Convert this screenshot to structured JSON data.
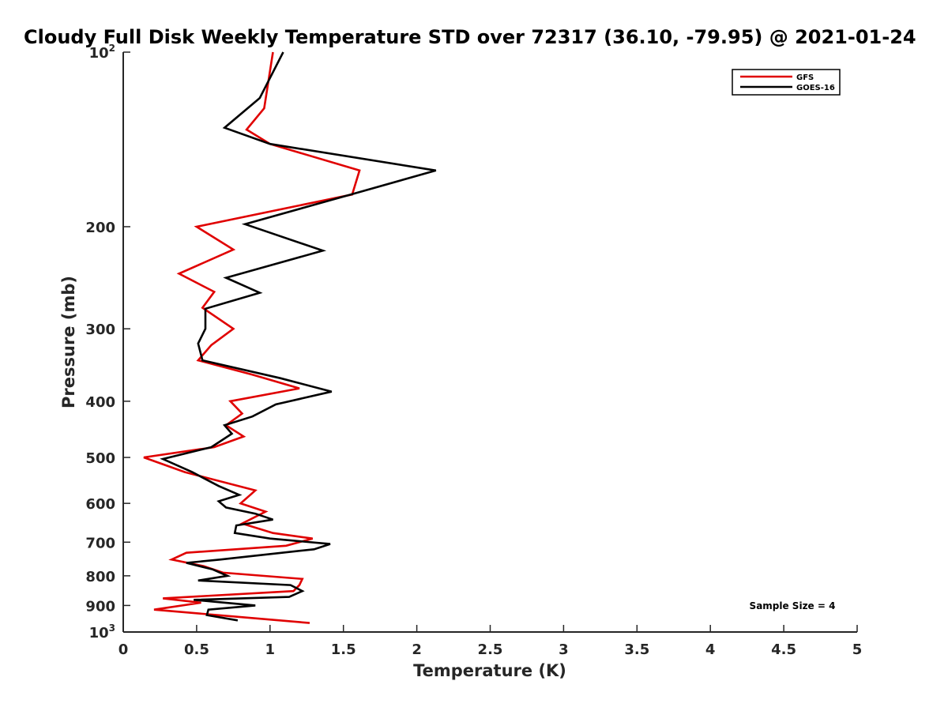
{
  "chart_data": {
    "type": "line",
    "title": "Cloudy Full Disk Weekly Temperature STD over 72317 (36.10, -79.95) @ 2021-01-24",
    "xlabel": "Temperature (K)",
    "ylabel": "Pressure (mb)",
    "xlim": [
      0,
      5
    ],
    "ylim": [
      1000,
      100
    ],
    "yscale": "log",
    "y_reversed": true,
    "grid": false,
    "legend_position": "top-right",
    "x_ticks": [
      "0",
      "0.5",
      "1",
      "1.5",
      "2",
      "2.5",
      "3",
      "3.5",
      "4",
      "4.5",
      "5"
    ],
    "y_ticks": [
      {
        "value": 100,
        "base": "10",
        "exp": "2"
      },
      {
        "value": 200,
        "label": "200"
      },
      {
        "value": 300,
        "label": "300"
      },
      {
        "value": 400,
        "label": "400"
      },
      {
        "value": 500,
        "label": "500"
      },
      {
        "value": 600,
        "label": "600"
      },
      {
        "value": 700,
        "label": "700"
      },
      {
        "value": 800,
        "label": "800"
      },
      {
        "value": 900,
        "label": "900"
      },
      {
        "value": 1000,
        "base": "10",
        "exp": "3"
      }
    ],
    "series": [
      {
        "name": "GFS",
        "color": "#e00000",
        "points": [
          [
            1.02,
            100
          ],
          [
            0.96,
            125
          ],
          [
            0.84,
            136
          ],
          [
            1.0,
            144
          ],
          [
            1.61,
            160
          ],
          [
            1.56,
            176
          ],
          [
            0.5,
            200
          ],
          [
            0.75,
            219
          ],
          [
            0.38,
            241
          ],
          [
            0.62,
            259
          ],
          [
            0.54,
            276
          ],
          [
            0.75,
            300
          ],
          [
            0.6,
            320
          ],
          [
            0.51,
            340
          ],
          [
            0.88,
            360
          ],
          [
            1.2,
            380
          ],
          [
            0.73,
            400
          ],
          [
            0.81,
            420
          ],
          [
            0.7,
            440
          ],
          [
            0.82,
            460
          ],
          [
            0.62,
            480
          ],
          [
            0.14,
            500
          ],
          [
            0.42,
            530
          ],
          [
            0.9,
            570
          ],
          [
            0.8,
            600
          ],
          [
            0.97,
            620
          ],
          [
            0.81,
            650
          ],
          [
            1.02,
            675
          ],
          [
            1.29,
            690
          ],
          [
            1.11,
            710
          ],
          [
            0.43,
            730
          ],
          [
            0.33,
            750
          ],
          [
            0.55,
            770
          ],
          [
            0.68,
            790
          ],
          [
            1.22,
            810
          ],
          [
            1.2,
            830
          ],
          [
            1.16,
            850
          ],
          [
            0.27,
            875
          ],
          [
            0.53,
            890
          ],
          [
            0.21,
            915
          ],
          [
            0.75,
            940
          ],
          [
            1.27,
            965
          ]
        ]
      },
      {
        "name": "GOES-16",
        "color": "#000000",
        "points": [
          [
            1.09,
            100
          ],
          [
            0.93,
            120
          ],
          [
            0.69,
            135
          ],
          [
            1.0,
            144
          ],
          [
            2.13,
            160
          ],
          [
            1.55,
            176
          ],
          [
            0.83,
            198
          ],
          [
            1.36,
            220
          ],
          [
            0.7,
            245
          ],
          [
            0.93,
            260
          ],
          [
            0.56,
            277
          ],
          [
            0.56,
            300
          ],
          [
            0.51,
            318
          ],
          [
            0.54,
            340
          ],
          [
            1.07,
            365
          ],
          [
            1.42,
            385
          ],
          [
            1.04,
            405
          ],
          [
            0.88,
            425
          ],
          [
            0.69,
            440
          ],
          [
            0.74,
            455
          ],
          [
            0.6,
            480
          ],
          [
            0.27,
            503
          ],
          [
            0.47,
            530
          ],
          [
            0.65,
            560
          ],
          [
            0.79,
            580
          ],
          [
            0.65,
            595
          ],
          [
            0.7,
            610
          ],
          [
            0.9,
            625
          ],
          [
            1.02,
            640
          ],
          [
            0.77,
            655
          ],
          [
            0.76,
            675
          ],
          [
            1.0,
            690
          ],
          [
            1.41,
            705
          ],
          [
            1.3,
            720
          ],
          [
            0.66,
            750
          ],
          [
            0.43,
            760
          ],
          [
            0.61,
            780
          ],
          [
            0.71,
            800
          ],
          [
            0.51,
            815
          ],
          [
            1.14,
            830
          ],
          [
            1.22,
            850
          ],
          [
            1.13,
            870
          ],
          [
            0.48,
            880
          ],
          [
            0.9,
            900
          ],
          [
            0.58,
            915
          ],
          [
            0.57,
            935
          ],
          [
            0.78,
            955
          ]
        ]
      }
    ],
    "annotation": "Sample Size = 4"
  }
}
